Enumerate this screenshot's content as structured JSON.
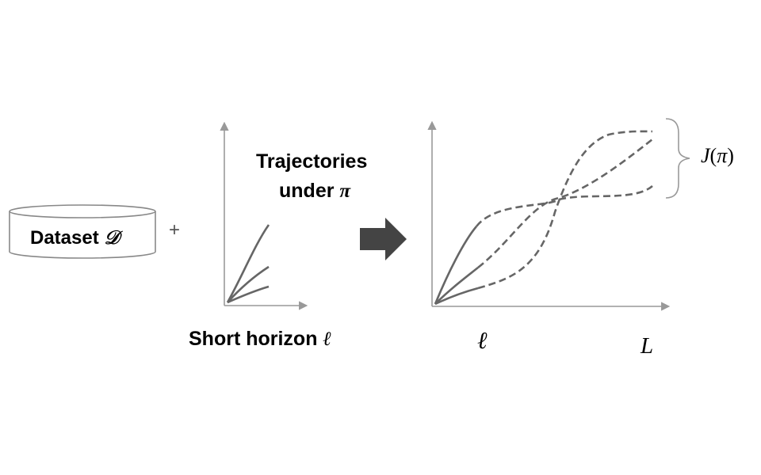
{
  "dataset": {
    "text": "Dataset",
    "symbol": "𝒟"
  },
  "plus": "+",
  "trajectories": {
    "line1": "Trajectories",
    "line2_text": "under",
    "line2_symbol": "π"
  },
  "short_horizon": {
    "text": "Short horizon",
    "symbol": "ℓ"
  },
  "axis_ticks": {
    "ell": "ℓ",
    "L": "L"
  },
  "objective": {
    "J": "J",
    "open": "(",
    "pi": "π",
    "close": ")"
  },
  "colors": {
    "axis": "#999999",
    "curve": "#666666",
    "arrow": "#444444",
    "cylinder": "#888888"
  },
  "icons": [
    "dataset-cylinder-icon",
    "right-arrow-icon",
    "curly-brace-icon"
  ]
}
